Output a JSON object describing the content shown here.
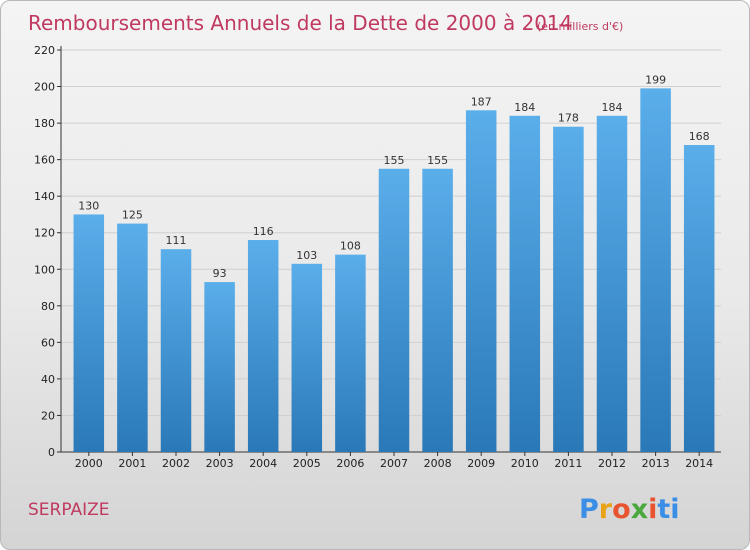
{
  "chart_data": {
    "type": "bar",
    "title": "Remboursements Annuels de la Dette de 2000 à 2014",
    "unit": "(en milliers d'€)",
    "categories": [
      "2000",
      "2001",
      "2002",
      "2003",
      "2004",
      "2005",
      "2006",
      "2007",
      "2008",
      "2009",
      "2010",
      "2011",
      "2012",
      "2013",
      "2014"
    ],
    "values": [
      130,
      125,
      111,
      93,
      116,
      103,
      108,
      155,
      155,
      187,
      184,
      178,
      184,
      199,
      168
    ],
    "ylim": [
      0,
      220
    ],
    "yticks": [
      0,
      20,
      40,
      60,
      80,
      100,
      120,
      140,
      160,
      180,
      200,
      220
    ],
    "grid": true,
    "xlabel": "",
    "ylabel": ""
  },
  "commune": "SERPAIZE",
  "logo": {
    "letters": [
      "P",
      "r",
      "o",
      "x",
      "i",
      "t",
      "i"
    ],
    "colors": [
      "#3a8ee6",
      "#e8a317",
      "#e8542f",
      "#4aa83c",
      "#e8542f",
      "#3a8ee6",
      "#3a8ee6"
    ]
  },
  "colors": {
    "bar_top": "#5aaeea",
    "bar_bottom": "#2a78b8",
    "accent": "#c0395f",
    "grid": "#d0d0d0"
  }
}
